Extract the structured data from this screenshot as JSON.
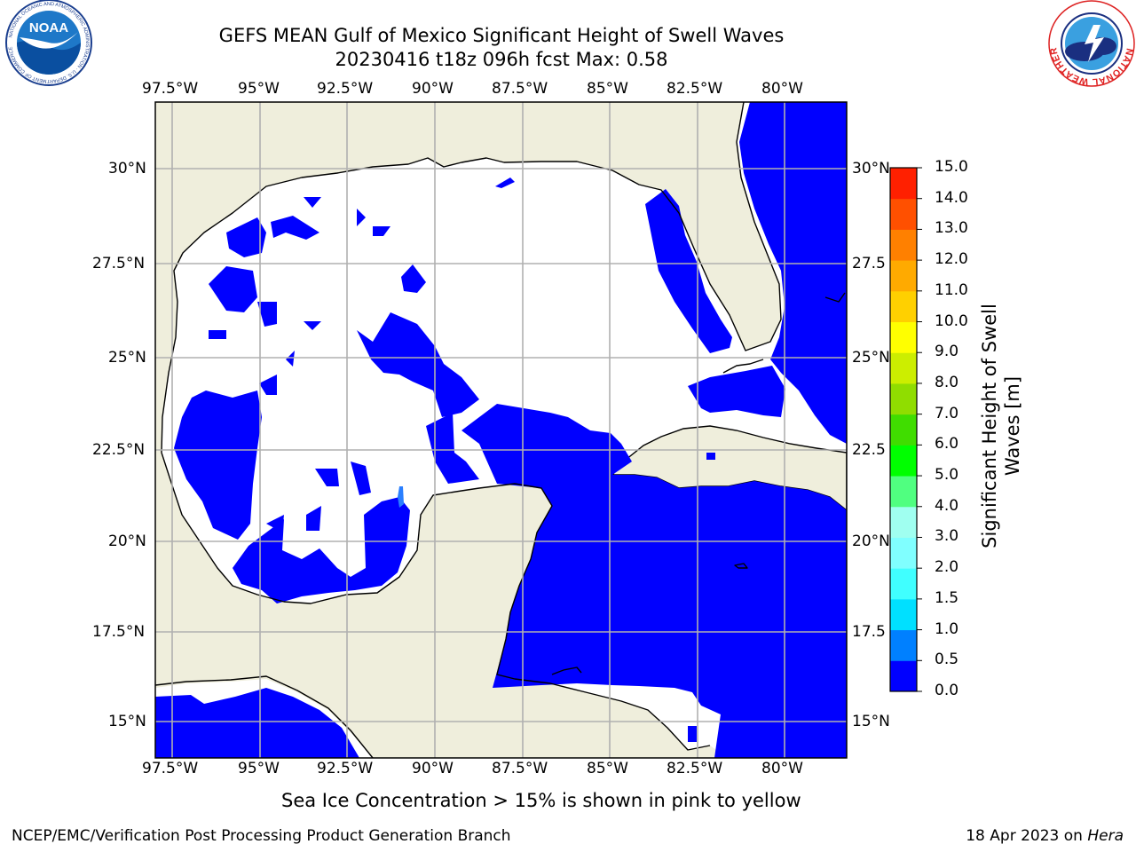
{
  "header": {
    "title_line1": "GEFS MEAN Gulf of Mexico Significant Height of Swell Waves",
    "title_line2": "20230416 t18z 096h fcst   Max: 0.58"
  },
  "logos": {
    "left": "NOAA",
    "left_ring_text": "NATIONAL OCEANIC AND ATMOSPHERIC ADMINISTRATION · U.S. DEPARTMENT OF COMMERCE",
    "right_ring_text": "NATIONAL WEATHER SERVICE"
  },
  "map": {
    "lon_labels": [
      "97.5°W",
      "95°W",
      "92.5°W",
      "90°W",
      "87.5°W",
      "85°W",
      "82.5°W",
      "80°W"
    ],
    "lat_labels_left": [
      "30°N",
      "27.5°N",
      "25°N",
      "22.5°N",
      "20°N",
      "17.5°N",
      "15°N"
    ],
    "lat_labels_right": [
      "30°N",
      "27.5",
      "25°N",
      "22.5",
      "20°N",
      "17.5",
      "15°N"
    ],
    "colors": {
      "land": "#efeedc",
      "water": "#ffffff",
      "swell_low": "#0000ff",
      "grid": "#b0b0b0"
    }
  },
  "colorbar": {
    "label_line1": "Significant Height of Swell",
    "label_line2": "Waves [m]",
    "levels": [
      "0.0",
      "0.5",
      "1.0",
      "1.5",
      "2.0",
      "3.0",
      "4.0",
      "5.0",
      "6.0",
      "7.0",
      "8.0",
      "9.0",
      "10.0",
      "11.0",
      "12.0",
      "13.0",
      "14.0",
      "15.0"
    ],
    "colors": [
      "#0000ff",
      "#0080ff",
      "#00e0ff",
      "#40ffff",
      "#80ffff",
      "#a0fff0",
      "#50ff80",
      "#00ff00",
      "#40dd00",
      "#90dd00",
      "#ccee00",
      "#ffff00",
      "#ffd000",
      "#ffaa00",
      "#ff8000",
      "#ff5000",
      "#ff2000"
    ]
  },
  "caption": "Sea Ice Concentration > 15% is shown in pink to yellow",
  "footer": {
    "left": "NCEP/EMC/Verification Post Processing Product Generation Branch",
    "right_date": "18 Apr 2023 on ",
    "right_host": "Hera"
  }
}
